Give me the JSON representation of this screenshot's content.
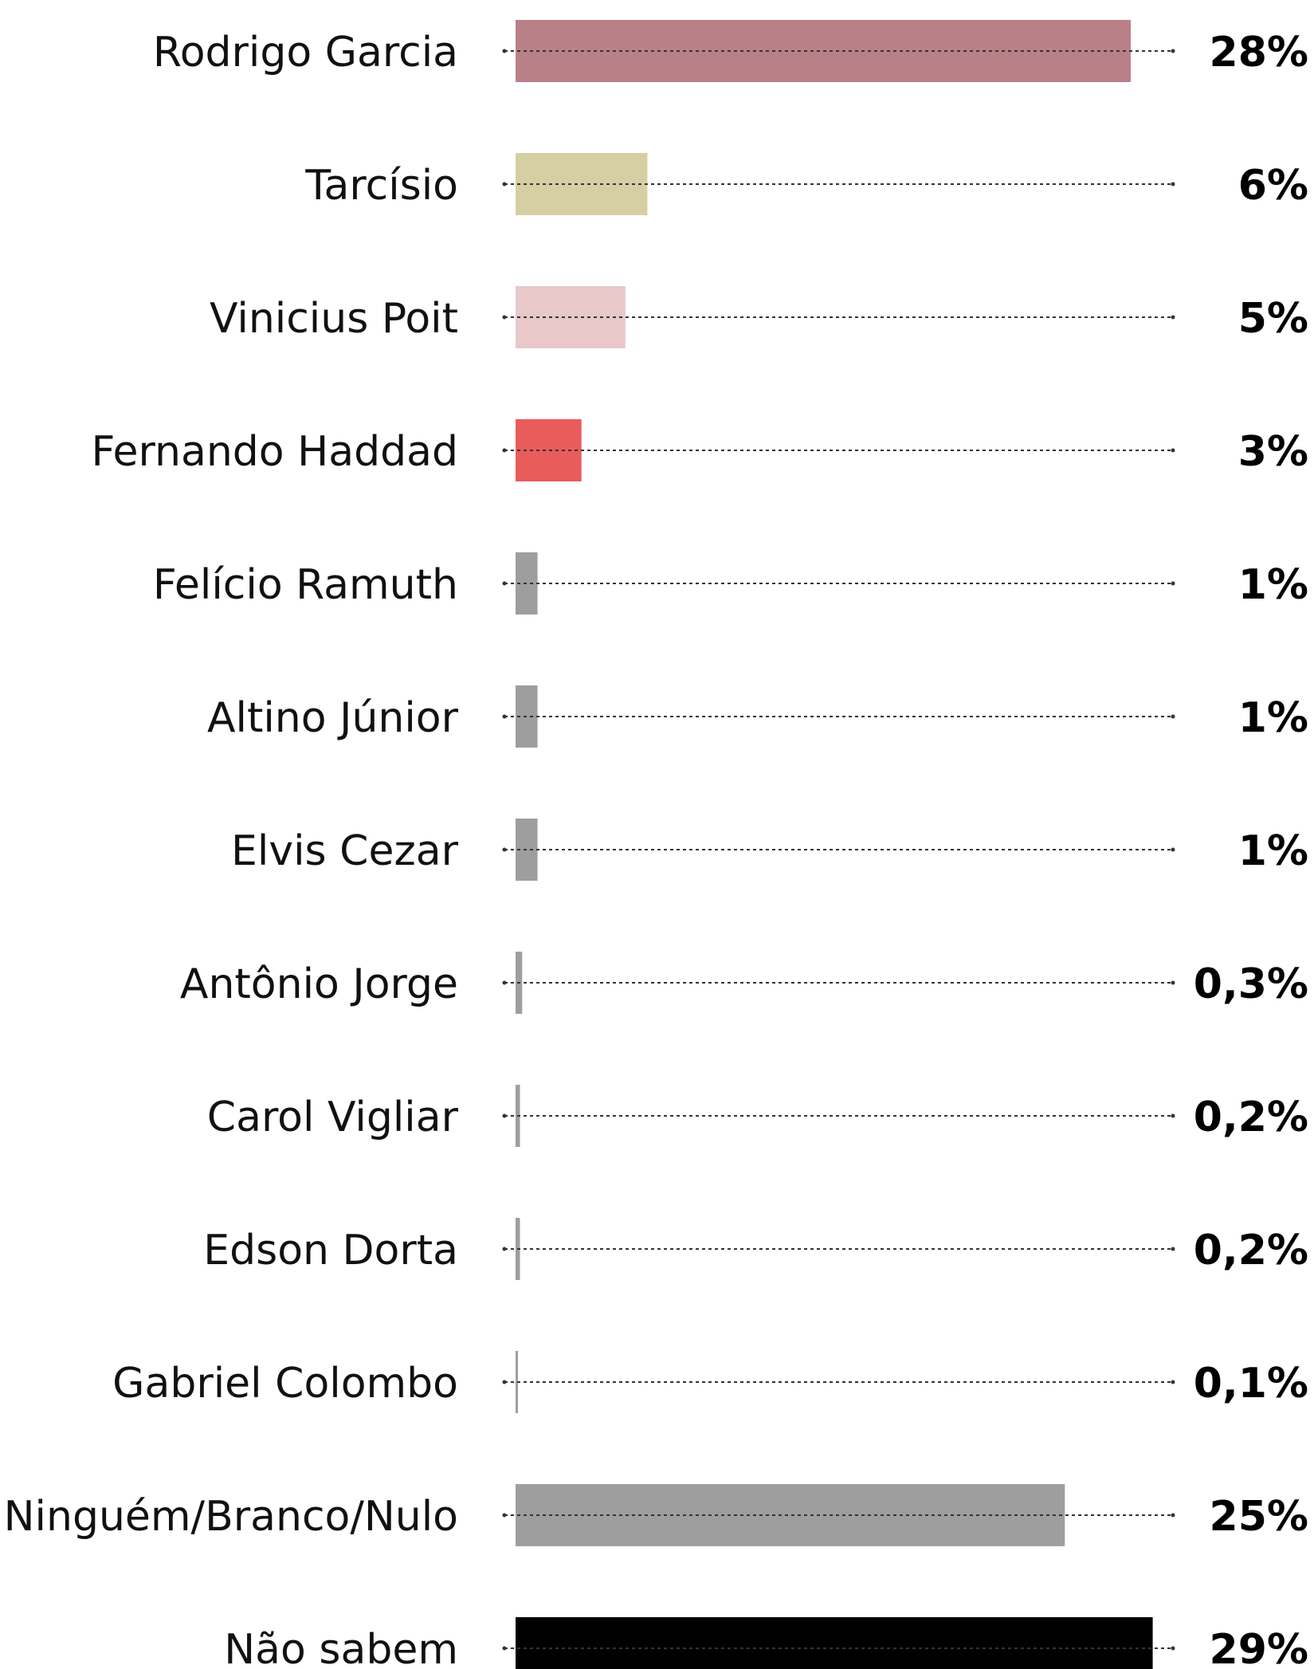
{
  "chart_data": {
    "type": "bar",
    "orientation": "horizontal",
    "title": "",
    "xlabel": "",
    "ylabel": "",
    "xlim": [
      0,
      29
    ],
    "grid": false,
    "legend": "none",
    "categories": [
      "Rodrigo Garcia",
      "Tarcísio",
      "Vinicius Poit",
      "Fernando Haddad",
      "Felício Ramuth",
      "Altino Júnior",
      "Elvis Cezar",
      "Antônio Jorge",
      "Carol Vigliar",
      "Edson Dorta",
      "Gabriel Colombo",
      "Ninguém/Branco/Nulo",
      "Não sabem"
    ],
    "values": [
      28,
      6,
      5,
      3,
      1,
      1,
      1,
      0.3,
      0.2,
      0.2,
      0.1,
      25,
      29
    ],
    "value_labels": [
      "28%",
      "6%",
      "5%",
      "3%",
      "1%",
      "1%",
      "1%",
      "0,3%",
      "0,2%",
      "0,2%",
      "0,1%",
      "25%",
      "29%"
    ],
    "colors": [
      "#b98088",
      "#d6cfa3",
      "#e8c8c8",
      "#e85c5c",
      "#9e9e9e",
      "#9e9e9e",
      "#9e9e9e",
      "#9e9e9e",
      "#9e9e9e",
      "#9e9e9e",
      "#9e9e9e",
      "#9e9e9e",
      "#000000"
    ]
  }
}
